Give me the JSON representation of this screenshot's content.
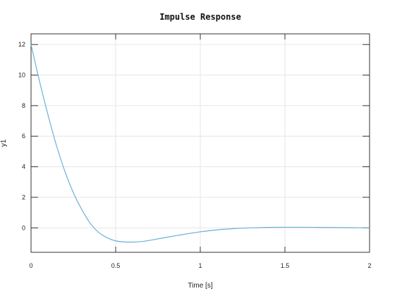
{
  "chart_data": {
    "type": "line",
    "title": "Impulse Response",
    "xlabel": "Time [s]",
    "ylabel": "y1",
    "xlim": [
      0,
      2
    ],
    "ylim": [
      -1.6,
      12.7
    ],
    "grid": true,
    "xticks": [
      0,
      0.5,
      1,
      1.5,
      2
    ],
    "xtick_labels": [
      "0",
      "0.5",
      "1",
      "1.5",
      "2"
    ],
    "yticks": [
      0,
      2,
      4,
      6,
      8,
      10,
      12
    ],
    "ytick_labels": [
      "0",
      "2",
      "4",
      "6",
      "8",
      "10",
      "12"
    ],
    "series": [
      {
        "color": "#6ab0d6",
        "x": [
          0,
          0.05,
          0.1,
          0.15,
          0.2,
          0.25,
          0.3,
          0.35,
          0.4,
          0.45,
          0.5,
          0.55,
          0.6,
          0.65,
          0.7,
          0.75,
          0.8,
          0.9,
          1.0,
          1.1,
          1.2,
          1.3,
          1.4,
          1.5,
          1.6,
          1.7,
          1.8,
          1.9,
          2.0
        ],
        "y": [
          12.0,
          9.6,
          7.4,
          5.4,
          3.7,
          2.3,
          1.2,
          0.3,
          -0.3,
          -0.65,
          -0.85,
          -0.92,
          -0.93,
          -0.9,
          -0.82,
          -0.72,
          -0.62,
          -0.43,
          -0.26,
          -0.13,
          -0.05,
          0.0,
          0.03,
          0.04,
          0.04,
          0.03,
          0.02,
          0.01,
          0.0
        ]
      }
    ]
  }
}
